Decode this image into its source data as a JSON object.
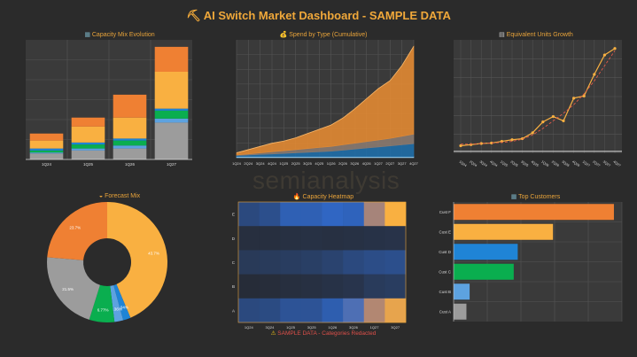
{
  "header": {
    "icon": "pickaxe-icon",
    "title": "AI Switch Market Dashboard - SAMPLE DATA"
  },
  "watermark": "semianalysis",
  "colors": {
    "orange": "#ef8033",
    "light_orange": "#f9b041",
    "blue": "#1f84d6",
    "green": "#0aae4f",
    "light_blue": "#5da2e0",
    "gray": "#9c9c9c",
    "heat_low": "#262a33",
    "tan": "#c48b66"
  },
  "panels": {
    "capacity_mix": {
      "icon": "bar-chart-icon",
      "title": "Capacity Mix Evolution"
    },
    "spend": {
      "icon": "money-bag-icon",
      "title": "Spend by Type (Cumulative)"
    },
    "units": {
      "icon": "chart-up-icon",
      "title": "Equivalent Units Growth"
    },
    "forecast": {
      "icon": "cake-icon",
      "title": "Forecast Mix"
    },
    "heatmap": {
      "icon": "fire-icon",
      "title": "Capacity Heatmap"
    },
    "customers": {
      "icon": "people-icon",
      "title": "Top Customers"
    }
  },
  "footer_warning": {
    "icon": "warning-icon",
    "text": "SAMPLE DATA - Categories Redacted"
  },
  "chart_data": [
    {
      "id": "capacity_mix",
      "type": "bar",
      "stacked": true,
      "title": "Capacity Mix Evolution",
      "categories": [
        "1Q24",
        "1Q25",
        "1Q26",
        "1Q27"
      ],
      "series": [
        {
          "name": "Gray",
          "color": "#9c9c9c",
          "values": [
            6,
            9,
            11,
            37
          ]
        },
        {
          "name": "Light Blue",
          "color": "#5da2e0",
          "values": [
            1,
            2,
            3,
            4
          ]
        },
        {
          "name": "Green",
          "color": "#0aae4f",
          "values": [
            2,
            4,
            5,
            8
          ]
        },
        {
          "name": "Blue",
          "color": "#1f84d6",
          "values": [
            2,
            2,
            2,
            2
          ]
        },
        {
          "name": "Light Orange",
          "color": "#f9b041",
          "values": [
            8,
            16,
            21,
            37
          ]
        },
        {
          "name": "Orange",
          "color": "#ef8033",
          "values": [
            7,
            9,
            23,
            25
          ]
        }
      ],
      "ylim": [
        0,
        120
      ],
      "grid": true
    },
    {
      "id": "spend",
      "type": "area",
      "stacked": true,
      "title": "Spend by Type (Cumulative)",
      "x": [
        "1Q24",
        "2Q24",
        "3Q24",
        "4Q24",
        "1Q25",
        "2Q25",
        "3Q25",
        "4Q25",
        "1Q26",
        "2Q26",
        "3Q26",
        "4Q26",
        "1Q27",
        "2Q27",
        "3Q27",
        "4Q27"
      ],
      "series": [
        {
          "name": "Light Blue",
          "color": "#9ed3f5",
          "values": [
            1,
            1,
            1,
            1,
            1,
            1,
            1,
            1,
            1,
            1,
            1,
            1,
            1,
            1,
            1,
            1
          ]
        },
        {
          "name": "Blue",
          "color": "#1f6ea8",
          "values": [
            1,
            1.5,
            2,
            2.5,
            3,
            3.5,
            4,
            4.5,
            5,
            6,
            7,
            8,
            9,
            10,
            11,
            12
          ]
        },
        {
          "name": "Gray",
          "color": "#8a7a70",
          "values": [
            0.5,
            1,
            1.5,
            2,
            2.5,
            3,
            3.5,
            4,
            4.5,
            5,
            5.5,
            6,
            6.5,
            7,
            8,
            9
          ]
        },
        {
          "name": "Orange",
          "color": "#e28a33",
          "values": [
            2,
            4,
            6,
            8,
            9,
            11,
            14,
            17,
            20,
            25,
            32,
            40,
            48,
            54,
            66,
            82
          ]
        }
      ],
      "ylim": [
        0,
        110
      ],
      "grid": true
    },
    {
      "id": "units",
      "type": "line",
      "title": "Equivalent Units Growth",
      "x": [
        "1Q24",
        "2Q24",
        "3Q24",
        "4Q24",
        "1Q25",
        "2Q25",
        "3Q25",
        "4Q25",
        "1Q26",
        "2Q26",
        "3Q26",
        "4Q26",
        "1Q27",
        "2Q27",
        "3Q27",
        "4Q27"
      ],
      "series": [
        {
          "name": "Units",
          "color": "#f9b041",
          "values": [
            2,
            3,
            4,
            4.5,
            6,
            7.5,
            8.5,
            14,
            24,
            29,
            25,
            46,
            48,
            68,
            86,
            92
          ]
        },
        {
          "name": "Trend",
          "color": "#e05a4a",
          "dashed": true,
          "values": [
            3.5,
            3.5,
            4,
            4.5,
            5,
            6,
            8,
            12,
            18,
            25,
            32,
            40,
            50,
            62,
            76,
            90
          ]
        }
      ],
      "ylim": [
        -5,
        100
      ],
      "grid": true
    },
    {
      "id": "forecast",
      "type": "pie",
      "donut": true,
      "title": "Forecast Mix",
      "slices": [
        {
          "label": "43.7%",
          "value": 43.7,
          "color": "#f9b041"
        },
        {
          "label": "2.04%",
          "value": 2.04,
          "color": "#1f84d6"
        },
        {
          "label": "2.36%",
          "value": 2.36,
          "color": "#5da2e0"
        },
        {
          "label": "6.77%",
          "value": 6.77,
          "color": "#0aae4f"
        },
        {
          "label": "21.5%",
          "value": 21.5,
          "color": "#9c9c9c"
        },
        {
          "label": "23.7%",
          "value": 23.7,
          "color": "#ef8033"
        }
      ]
    },
    {
      "id": "heatmap",
      "type": "heatmap",
      "title": "Capacity Heatmap",
      "x": [
        "1Q24",
        "3Q24",
        "1Q25",
        "3Q25",
        "1Q26",
        "3Q26",
        "1Q27",
        "3Q27"
      ],
      "y": [
        "E",
        "D",
        "C",
        "B",
        "A"
      ],
      "values": [
        [
          0.3,
          0.36,
          0.52,
          0.52,
          0.58,
          0.55,
          0.8,
          1.0
        ],
        [
          0.05,
          0.05,
          0.06,
          0.07,
          0.06,
          0.07,
          0.08,
          0.09
        ],
        [
          0.15,
          0.16,
          0.18,
          0.2,
          0.24,
          0.3,
          0.34,
          0.36
        ],
        [
          0.02,
          0.03,
          0.05,
          0.06,
          0.08,
          0.1,
          0.16,
          0.18
        ],
        [
          0.3,
          0.32,
          0.4,
          0.4,
          0.5,
          0.65,
          0.82,
          0.95
        ]
      ]
    },
    {
      "id": "customers",
      "type": "bar",
      "orientation": "horizontal",
      "title": "Top Customers",
      "categories": [
        "Cust F",
        "Cust E",
        "Cust D",
        "Cust C",
        "Cust B",
        "Cust A"
      ],
      "values": [
        100,
        62,
        40,
        37.5,
        10,
        8
      ],
      "colors": [
        "#ef8033",
        "#f9b041",
        "#1f84d6",
        "#0aae4f",
        "#5da2e0",
        "#9c9c9c"
      ],
      "xlim": [
        0,
        105
      ],
      "grid": true
    }
  ]
}
